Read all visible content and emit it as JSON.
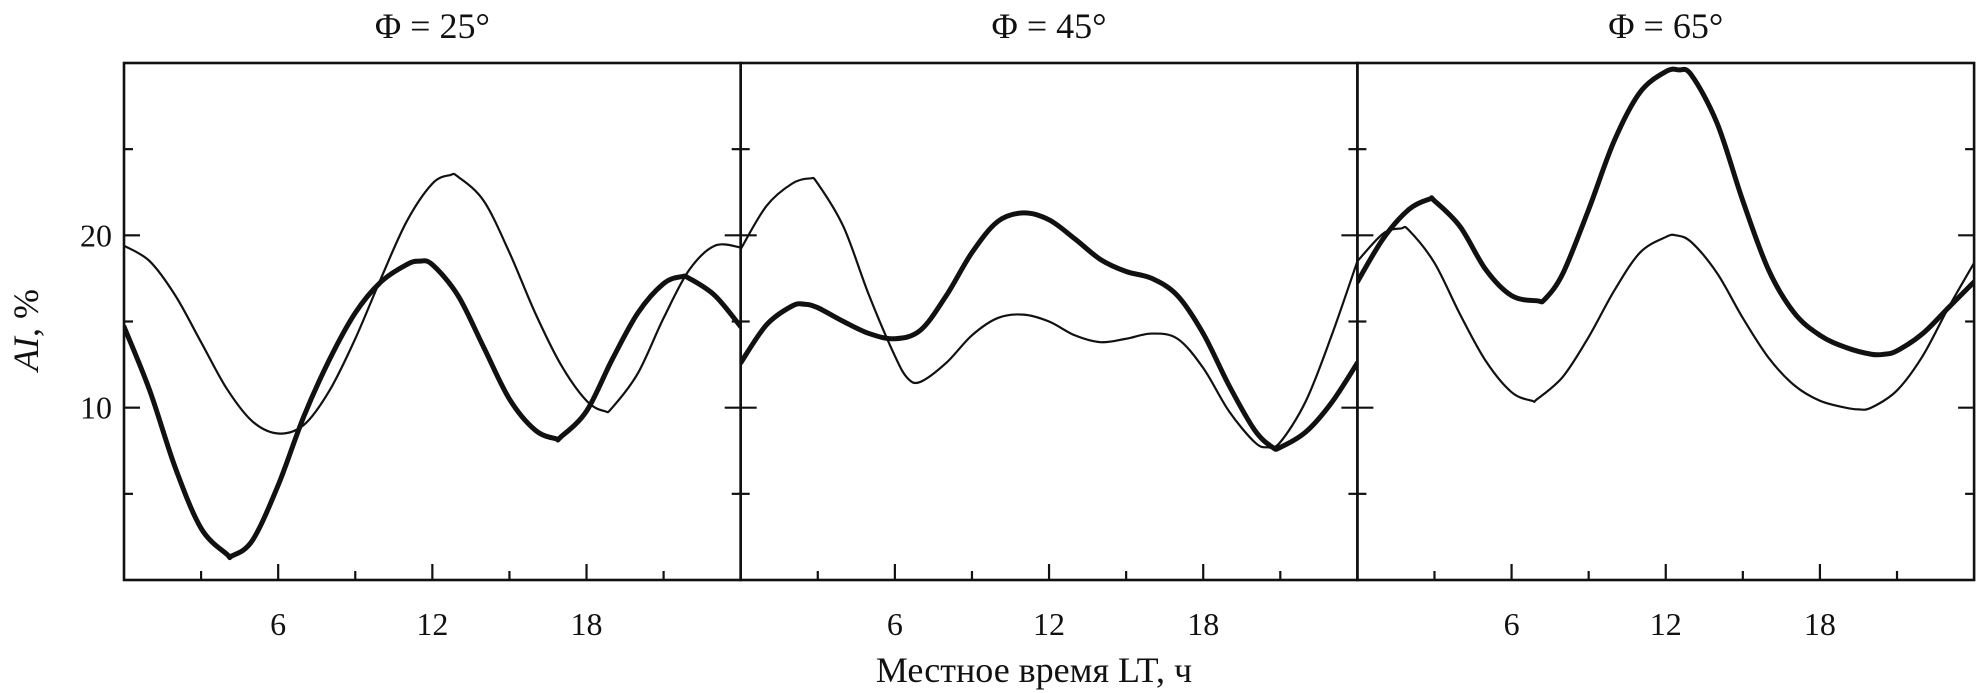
{
  "chart_data": {
    "type": "line",
    "xlabel": "Местное время LT, ч",
    "ylabel_main": "AI",
    "ylabel_unit": ", %",
    "xlim": [
      0,
      24
    ],
    "ylim": [
      0,
      30
    ],
    "xticks": [
      6,
      12,
      18
    ],
    "yticks": [
      10,
      20
    ],
    "grid": false,
    "legend": "none",
    "panels": [
      {
        "title": "Φ = 25°",
        "series": [
          {
            "style": "thin",
            "x": [
              0,
              1,
              2,
              3,
              4,
              5,
              6,
              7,
              8,
              9,
              10,
              11,
              12,
              12.7,
              13,
              14,
              15,
              16,
              17,
              18,
              18.7,
              19,
              20,
              21,
              22,
              23,
              24
            ],
            "y": [
              19.4,
              18.5,
              16.5,
              13.8,
              11.1,
              9.2,
              8.5,
              9.0,
              11.0,
              14.0,
              17.5,
              20.8,
              23.0,
              23.5,
              23.4,
              22.0,
              19.0,
              15.5,
              12.5,
              10.4,
              9.8,
              10.0,
              12.0,
              15.2,
              18.0,
              19.4,
              19.3
            ]
          },
          {
            "style": "thick",
            "x": [
              0,
              1,
              2,
              3,
              4,
              4.2,
              5,
              6,
              7,
              8,
              9,
              10,
              11,
              11.5,
              12,
              13,
              14,
              15,
              16,
              16.8,
              17,
              18,
              19,
              20,
              21,
              21.7,
              22,
              23,
              24
            ],
            "y": [
              14.7,
              11.0,
              6.5,
              3.0,
              1.5,
              1.4,
              2.3,
              5.5,
              9.5,
              12.8,
              15.5,
              17.3,
              18.3,
              18.5,
              18.3,
              16.5,
              13.5,
              10.5,
              8.7,
              8.2,
              8.3,
              9.8,
              12.8,
              15.5,
              17.2,
              17.6,
              17.5,
              16.5,
              14.7
            ]
          }
        ]
      },
      {
        "title": "Φ = 45°",
        "series": [
          {
            "style": "thin",
            "x": [
              0,
              1,
              2,
              2.7,
              3,
              4,
              5,
              6,
              6.5,
              7,
              8,
              9,
              10,
              11,
              12,
              13,
              14,
              15,
              16,
              17,
              18,
              19,
              20,
              20.5,
              21,
              22,
              23,
              24
            ],
            "y": [
              19.2,
              21.7,
              23.0,
              23.3,
              23.0,
              20.5,
              16.5,
              13.0,
              11.7,
              11.5,
              12.6,
              14.2,
              15.2,
              15.4,
              15.0,
              14.2,
              13.8,
              14.0,
              14.3,
              14.0,
              12.3,
              9.8,
              8.0,
              7.7,
              8.0,
              10.4,
              14.2,
              18.5
            ]
          },
          {
            "style": "thick",
            "x": [
              0,
              1,
              2,
              2.5,
              3,
              4,
              5,
              6,
              7,
              8,
              9,
              10,
              11,
              12,
              13,
              14,
              15,
              16,
              17,
              18,
              19,
              20,
              20.7,
              21,
              22,
              23,
              24
            ],
            "y": [
              12.6,
              14.8,
              15.9,
              16.0,
              15.8,
              15.0,
              14.3,
              14.0,
              14.5,
              16.5,
              19.0,
              20.8,
              21.3,
              20.9,
              19.8,
              18.6,
              17.9,
              17.5,
              16.5,
              14.3,
              11.3,
              8.7,
              7.7,
              7.7,
              8.6,
              10.3,
              12.6
            ]
          }
        ]
      },
      {
        "title": "Φ = 65°",
        "series": [
          {
            "style": "thin",
            "x": [
              0,
              1,
              1.7,
              2,
              3,
              4,
              5,
              6,
              6.8,
              7,
              8,
              9,
              10,
              11,
              12,
              12.4,
              13,
              14,
              15,
              16,
              17,
              18,
              19,
              19.5,
              20,
              21,
              22,
              23,
              24
            ],
            "y": [
              18.5,
              20.1,
              20.4,
              20.3,
              18.4,
              15.4,
              12.7,
              10.9,
              10.4,
              10.5,
              11.8,
              14.1,
              16.8,
              19.0,
              19.9,
              20.0,
              19.6,
              17.8,
              15.2,
              12.9,
              11.3,
              10.4,
              10.0,
              9.9,
              10.0,
              11.0,
              13.0,
              15.8,
              18.4
            ]
          },
          {
            "style": "thick",
            "x": [
              0,
              1,
              2,
              2.8,
              3,
              4,
              5,
              6,
              7,
              7.3,
              8,
              9,
              10,
              11,
              12,
              12.5,
              13,
              14,
              15,
              16,
              17,
              18,
              19,
              20,
              20.5,
              21,
              22,
              23,
              24
            ],
            "y": [
              17.3,
              19.8,
              21.5,
              22.1,
              22.0,
              20.5,
              18.0,
              16.5,
              16.2,
              16.3,
              17.8,
              21.5,
              25.5,
              28.3,
              29.5,
              29.6,
              29.3,
              26.5,
              22.0,
              18.0,
              15.5,
              14.2,
              13.5,
              13.1,
              13.1,
              13.3,
              14.3,
              15.8,
              17.3
            ]
          }
        ]
      }
    ]
  }
}
